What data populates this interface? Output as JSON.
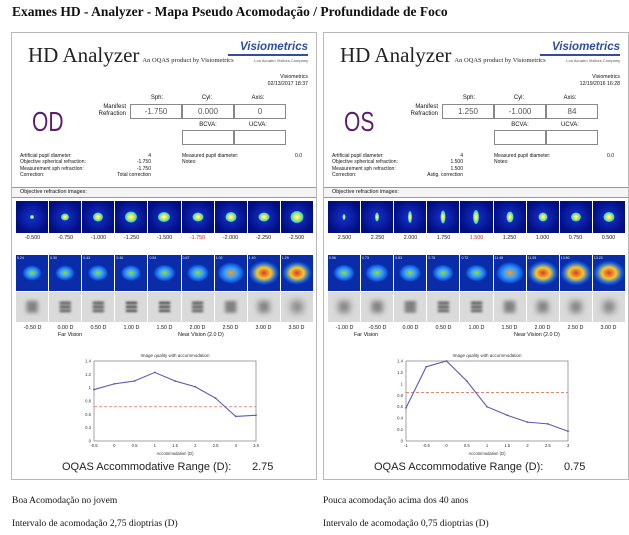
{
  "title": "Exames HD - Analyzer  - Mapa Pseudo Acomodação / Profundidade de Foco",
  "panels": [
    {
      "app_title": "HD Analyzer",
      "app_sub": "An OQAS product by Visiometrics",
      "brand": "Visiometrics",
      "brand_sub": "Lou Acuatro Visitors Company",
      "meta_label": "Visiometrics",
      "date": "02/13/2017 18:37",
      "eye": "OD",
      "manifest_label": "Manifest Refraction",
      "sph_label": "Sph:",
      "cyl_label": "Cyl:",
      "axis_label": "Axis:",
      "sph": "-1.750",
      "cyl": "0.000",
      "axis": "0",
      "bcva_label": "BCVA:",
      "ucva_label": "UCVA:",
      "params": [
        {
          "k": "Artificial pupil diameter:",
          "v": "4"
        },
        {
          "k": "Objective spherical refraction:",
          "v": "-1.750"
        },
        {
          "k": "Measurement sph refraction:",
          "v": "-1.750"
        },
        {
          "k": "Correction:",
          "v": "Total correction"
        }
      ],
      "params2": [
        {
          "k": "Measured pupil diameter:",
          "v": "0.0"
        },
        {
          "k": "Notes:",
          "v": ""
        }
      ],
      "obj_images_label": "Objective refraction images:",
      "refr_labels": [
        "-0.500",
        "-0.750",
        "-1.000",
        "-1.250",
        "-1.500",
        "-1.750",
        "-2.000",
        "-2.250",
        "-2.500"
      ],
      "refr_highlight": 5,
      "map_tags": [
        "0.24",
        "0.30",
        "0.43",
        "0.46",
        "0.54",
        "0.67",
        "1.03",
        "1.40",
        "1.29"
      ],
      "vergence_labels": [
        "-0.50 D",
        "0.00 D",
        "0.50 D",
        "1.00 D",
        "1.50 D",
        "2.00 D",
        "2.50 D",
        "3.00 D",
        "3.50 D"
      ],
      "far_vision": "Far Vision",
      "near_vision": "Near Vision (2.0 D)",
      "chart_title": "Image quality with accommodation",
      "oqas_label": "OQAS Accommodative Range (D):",
      "oqas_value": "2.75",
      "caption1": "Boa Acomodação no jovem",
      "caption2": "Intervalo de acomodação 2,75 dioptrias (D)",
      "chart_data": {
        "type": "line",
        "xlabel": "Accommodation (D)",
        "x": [
          -0.5,
          0,
          0.5,
          1,
          1.5,
          2,
          2.5,
          3,
          3.5
        ],
        "values": [
          0.9,
          1.0,
          1.05,
          1.2,
          1.05,
          0.95,
          0.75,
          0.43,
          0.45
        ],
        "threshold": 0.6,
        "xlim": [
          -0.5,
          3.5
        ],
        "ylim": [
          0,
          1.4
        ],
        "xticks": [
          "-0.5",
          "0",
          "0.5",
          "1",
          "1.5",
          "2",
          "2.5",
          "3",
          "3.5"
        ],
        "yticks": [
          "0",
          "0.3",
          "0.5",
          "0.8",
          "1",
          "1.2",
          "1.4"
        ]
      }
    },
    {
      "app_title": "HD Analyzer",
      "app_sub": "An OQAS product by Visiometrics",
      "brand": "Visiometrics",
      "brand_sub": "Lou Acuatro Visitors Company",
      "meta_label": "Visiometrics",
      "date": "12/19/2016 16:28",
      "eye": "OS",
      "manifest_label": "Manifest Refraction",
      "sph_label": "Sph:",
      "cyl_label": "Cyl:",
      "axis_label": "Axis:",
      "sph": "1.250",
      "cyl": "-1.000",
      "axis": "84",
      "bcva_label": "BCVA:",
      "ucva_label": "UCVA:",
      "params": [
        {
          "k": "Artificial pupil diameter:",
          "v": "4"
        },
        {
          "k": "Objective spherical refraction:",
          "v": "1.500"
        },
        {
          "k": "Measurement sph refraction:",
          "v": "1.500"
        },
        {
          "k": "Correction:",
          "v": "Astig. correction"
        }
      ],
      "params2": [
        {
          "k": "Measured pupil diameter:",
          "v": "0.0"
        },
        {
          "k": "Notes:",
          "v": ""
        }
      ],
      "obj_images_label": "Objective refraction images:",
      "refr_labels": [
        "2.500",
        "2.250",
        "2.000",
        "1.750",
        "1.500",
        "1.250",
        "1.000",
        "0.750",
        "0.500"
      ],
      "refr_highlight": 4,
      "map_tags": [
        "0.56",
        "0.73",
        "0.83",
        "0.75",
        "0.72",
        "11.48",
        "11.05",
        "13.80",
        "13.23"
      ],
      "vergence_labels": [
        "-1.00 D",
        "-0.50 D",
        "0.00 D",
        "0.50 D",
        "1.00 D",
        "1.50 D",
        "2.00 D",
        "2.50 D",
        "3.00 D"
      ],
      "far_vision": "Far Vision",
      "near_vision": "Near Vision (2.0 D)",
      "chart_title": "Image quality with accommodation",
      "oqas_label": "OQAS Accommodative Range (D):",
      "oqas_value": "0.75",
      "caption1": "Pouca acomodação acima dos 40 anos",
      "caption2": "Intervalo de acomodação 0,75 dioptrias (D)",
      "chart_data": {
        "type": "line",
        "xlabel": "Accommodation (D)",
        "x": [
          -1,
          -0.5,
          0,
          0.5,
          1,
          1.5,
          2,
          2.5,
          3
        ],
        "values": [
          0.58,
          1.3,
          1.4,
          1.05,
          0.6,
          0.45,
          0.33,
          0.3,
          0.17
        ],
        "threshold": 0.85,
        "xlim": [
          -1,
          3
        ],
        "ylim": [
          0,
          1.4
        ],
        "xticks": [
          "-1",
          "-0.5",
          "0",
          "0.5",
          "1",
          "1.5",
          "2",
          "2.5",
          "3"
        ],
        "yticks": [
          "0",
          "0.2",
          "0.4",
          "0.6",
          "0.8",
          "1",
          "1.2",
          "1.4"
        ]
      }
    }
  ]
}
